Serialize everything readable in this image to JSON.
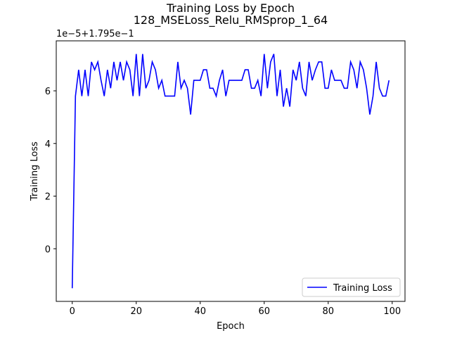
{
  "chart_data": {
    "type": "line",
    "title": "Training Loss by Epoch",
    "subtitle": "128_MSELoss_Relu_RMSprop_1_64",
    "xlabel": "Epoch",
    "ylabel": "Training Loss",
    "offset_label": "1e−5+1.795e−1",
    "xlim": [
      -5,
      104
    ],
    "ylim": [
      -2.0,
      7.9
    ],
    "xticks": [
      0,
      20,
      40,
      60,
      80,
      100
    ],
    "yticks": [
      0,
      2,
      4,
      6
    ],
    "grid": false,
    "legend_position": "lower right",
    "series": [
      {
        "name": "Training Loss",
        "color": "#0000ff",
        "x": [
          0,
          1,
          2,
          3,
          4,
          5,
          6,
          7,
          8,
          9,
          10,
          11,
          12,
          13,
          14,
          15,
          16,
          17,
          18,
          19,
          20,
          21,
          22,
          23,
          24,
          25,
          26,
          27,
          28,
          29,
          30,
          31,
          32,
          33,
          34,
          35,
          36,
          37,
          38,
          39,
          40,
          41,
          42,
          43,
          44,
          45,
          46,
          47,
          48,
          49,
          50,
          51,
          52,
          53,
          54,
          55,
          56,
          57,
          58,
          59,
          60,
          61,
          62,
          63,
          64,
          65,
          66,
          67,
          68,
          69,
          70,
          71,
          72,
          73,
          74,
          75,
          76,
          77,
          78,
          79,
          80,
          81,
          82,
          83,
          84,
          85,
          86,
          87,
          88,
          89,
          90,
          91,
          92,
          93,
          94,
          95,
          96,
          97,
          98,
          99
        ],
        "values": [
          -1.5,
          5.8,
          6.8,
          5.8,
          6.8,
          5.8,
          7.1,
          6.8,
          7.1,
          6.4,
          5.8,
          6.8,
          6.1,
          7.1,
          6.4,
          7.1,
          6.4,
          7.1,
          6.8,
          5.8,
          7.4,
          5.8,
          7.4,
          6.1,
          6.4,
          7.1,
          6.8,
          6.1,
          6.4,
          5.8,
          5.8,
          5.8,
          5.8,
          7.1,
          6.1,
          6.4,
          6.1,
          5.1,
          6.4,
          6.4,
          6.4,
          6.8,
          6.8,
          6.1,
          6.1,
          5.8,
          6.4,
          6.8,
          5.8,
          6.4,
          6.4,
          6.4,
          6.4,
          6.4,
          6.8,
          6.8,
          6.1,
          6.1,
          6.4,
          5.8,
          7.4,
          6.1,
          7.1,
          7.4,
          5.8,
          6.8,
          5.4,
          6.1,
          5.4,
          6.8,
          6.4,
          7.1,
          6.1,
          5.8,
          7.1,
          6.4,
          6.8,
          7.1,
          7.1,
          6.1,
          6.1,
          6.8,
          6.4,
          6.4,
          6.4,
          6.1,
          6.1,
          7.1,
          6.8,
          6.1,
          7.1,
          6.8,
          6.1,
          5.1,
          5.8,
          7.1,
          6.1,
          5.8,
          5.8,
          6.4
        ]
      }
    ]
  }
}
